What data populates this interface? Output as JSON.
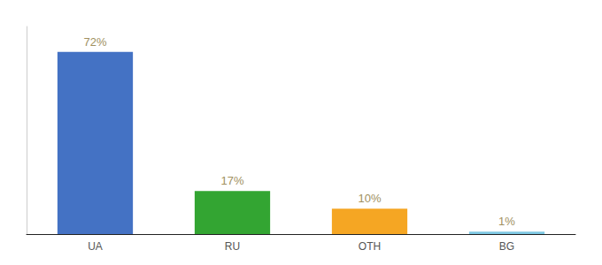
{
  "chart_data": {
    "type": "bar",
    "categories": [
      "UA",
      "RU",
      "OTH",
      "BG"
    ],
    "values": [
      72,
      17,
      10,
      1
    ],
    "value_labels": [
      "72%",
      "17%",
      "10%",
      "1%"
    ],
    "colors": [
      "#4472c4",
      "#33a532",
      "#f5a623",
      "#7ec8e3"
    ],
    "ylim": [
      0,
      82
    ],
    "grid": false,
    "data_labels": true,
    "tick_labels": "x"
  }
}
